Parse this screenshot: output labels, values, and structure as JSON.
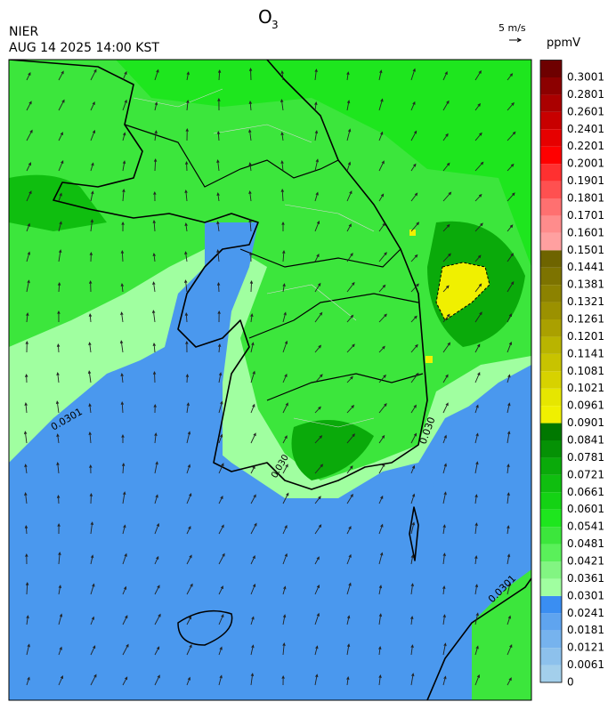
{
  "header": {
    "title": "O",
    "title_sub": "3",
    "agency": "NIER",
    "datetime": "AUG 14 2025 14:00 KST",
    "wind_scale": "5 m/s"
  },
  "colorbar": {
    "unit": "ppmV",
    "labels": [
      "0",
      "0.0061",
      "0.0121",
      "0.0181",
      "0.0241",
      "0.0301",
      "0.0361",
      "0.0421",
      "0.0481",
      "0.0541",
      "0.0601",
      "0.0661",
      "0.0721",
      "0.0781",
      "0.0841",
      "0.0901",
      "0.0961",
      "0.1021",
      "0.1081",
      "0.1141",
      "0.1201",
      "0.1261",
      "0.1321",
      "0.1381",
      "0.1441",
      "0.1501",
      "0.1601",
      "0.1701",
      "0.1801",
      "0.1901",
      "0.2001",
      "0.2201",
      "0.2401",
      "0.2601",
      "0.2801",
      "0.3001"
    ],
    "colors": [
      "#a3cfeb",
      "#8dc1ec",
      "#76b3ee",
      "#5fa4ef",
      "#3a8ef2",
      "#a0ffa0",
      "#82f582",
      "#5af05a",
      "#3ce63c",
      "#1ee61e",
      "#14d214",
      "#0fbe0f",
      "#0aaa0a",
      "#059105",
      "#007800",
      "#f0f000",
      "#e6e600",
      "#d7d200",
      "#c8c300",
      "#b9b400",
      "#aaa000",
      "#9b9100",
      "#8c8200",
      "#7d7300",
      "#6e6400",
      "#ffa0a0",
      "#ff8c8c",
      "#ff7070",
      "#ff5050",
      "#ff3030",
      "#ff0000",
      "#e60000",
      "#c80000",
      "#aa0000",
      "#8c0000",
      "#6e0000"
    ]
  },
  "map": {
    "contour_labels": [
      "0.0301",
      "0.030",
      "0.030",
      "0.0301"
    ]
  }
}
